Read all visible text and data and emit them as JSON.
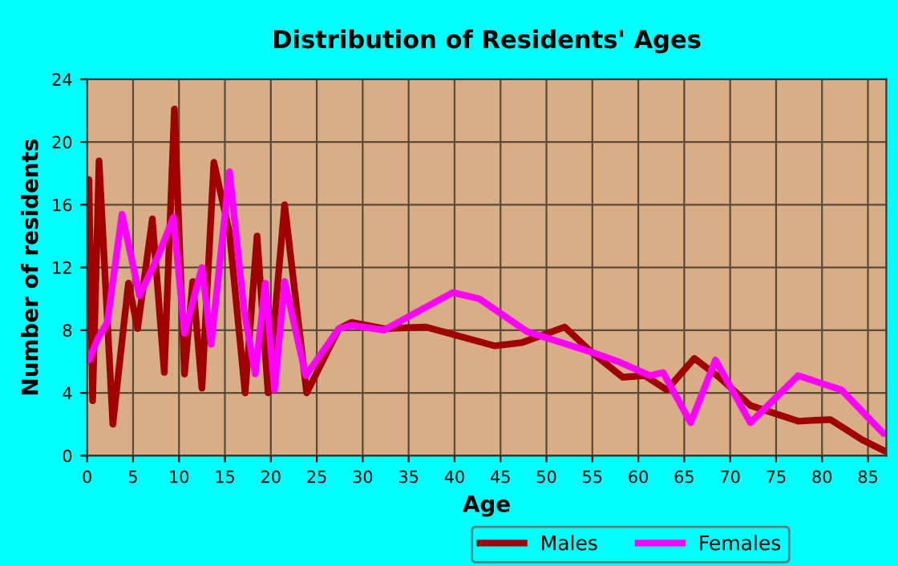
{
  "chart_data": {
    "type": "line",
    "title": "Distribution of Residents' Ages",
    "xlabel": "Age",
    "ylabel": "Number of residents",
    "xlim": [
      0,
      87
    ],
    "ylim": [
      0,
      24
    ],
    "xticks": [
      0,
      5,
      10,
      15,
      20,
      25,
      30,
      35,
      40,
      45,
      50,
      55,
      60,
      65,
      70,
      75,
      80,
      85
    ],
    "yticks": [
      0,
      4,
      8,
      12,
      16,
      20,
      24
    ],
    "grid": true,
    "legend": "bottom",
    "marker": "none",
    "line_style": "solid",
    "series": [
      {
        "name": "Males",
        "color": "#a00000",
        "x": [
          0.2,
          0.6,
          1.3,
          2.8,
          4.5,
          5.5,
          7.1,
          8.4,
          9.5,
          10.6,
          11.5,
          12.5,
          13.8,
          15.5,
          17.2,
          18.5,
          19.7,
          21.5,
          23.9,
          27.4,
          28.8,
          32.3,
          36.9,
          44.4,
          47.3,
          52.0,
          54.9,
          58.3,
          60.7,
          63.1,
          66.1,
          68.8,
          72.2,
          77.4,
          80.9,
          84.4,
          86.8
        ],
        "values": [
          17.6,
          3.5,
          18.8,
          2.0,
          11.0,
          8.1,
          15.1,
          5.3,
          22.1,
          5.2,
          11.1,
          4.3,
          18.7,
          14.2,
          4.0,
          14.0,
          4.0,
          16.0,
          4.0,
          8.1,
          8.5,
          8.1,
          8.2,
          7.0,
          7.2,
          8.2,
          6.6,
          5.0,
          5.1,
          4.2,
          6.2,
          5.0,
          3.2,
          2.2,
          2.3,
          1.0,
          0.3
        ]
      },
      {
        "name": "Females",
        "color": "#ff00ff",
        "x": [
          0.2,
          1.2,
          2.2,
          3.8,
          5.7,
          7.7,
          9.4,
          10.6,
          12.5,
          13.5,
          15.5,
          17.1,
          18.3,
          19.4,
          20.4,
          21.5,
          23.8,
          27.4,
          28.8,
          32.3,
          39.8,
          42.7,
          47.9,
          54.9,
          57.8,
          61.3,
          62.7,
          65.7,
          68.4,
          72.2,
          77.4,
          82.1,
          86.7
        ],
        "values": [
          6.1,
          7.5,
          8.5,
          15.4,
          10.2,
          12.7,
          15.2,
          7.8,
          12.0,
          7.1,
          18.1,
          9.2,
          5.2,
          11.0,
          4.2,
          11.1,
          5.1,
          8.1,
          8.3,
          8.0,
          10.4,
          10.0,
          7.9,
          6.6,
          6.0,
          5.1,
          5.3,
          2.1,
          6.1,
          2.1,
          5.1,
          4.2,
          1.4
        ]
      }
    ]
  }
}
